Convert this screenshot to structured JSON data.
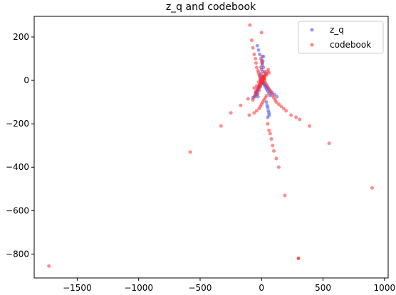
{
  "chart_data": {
    "type": "scatter",
    "title": "z_q and codebook",
    "xlabel": "",
    "ylabel": "",
    "xlim": [
      -1850,
      1030
    ],
    "ylim": [
      -910,
      295
    ],
    "xticks": [
      -1500,
      -1000,
      -500,
      0,
      500,
      1000
    ],
    "yticks": [
      -800,
      -600,
      -400,
      -200,
      0,
      200
    ],
    "grid": false,
    "legend_position": "top-right",
    "series": [
      {
        "name": "z_q",
        "color": "#4050ee",
        "x": [
          -70,
          -60,
          -50,
          -40,
          -30,
          -20,
          -10,
          0,
          10,
          20,
          30,
          40,
          50,
          60,
          70,
          -35,
          -25,
          -15,
          -5,
          5,
          15,
          25,
          -8,
          4,
          12,
          -2,
          6,
          -4,
          2,
          8,
          22,
          38,
          52,
          68,
          85,
          105,
          125,
          40,
          45,
          50,
          55,
          60,
          62,
          50,
          -20,
          -28,
          -35,
          -45,
          -40,
          -30,
          -5,
          0,
          5,
          10,
          15,
          0,
          -5,
          5,
          10,
          -10
        ],
        "y": [
          -80,
          -75,
          -65,
          -55,
          -45,
          -35,
          -25,
          -15,
          -10,
          -20,
          -30,
          -40,
          -50,
          -60,
          -70,
          160,
          140,
          120,
          100,
          80,
          60,
          40,
          20,
          10,
          5,
          -5,
          -8,
          0,
          2,
          -3,
          -15,
          -25,
          -35,
          -45,
          -55,
          -65,
          -75,
          -100,
          -115,
          -125,
          -140,
          -150,
          -160,
          -170,
          -25,
          -35,
          -45,
          -55,
          -65,
          -75,
          30,
          50,
          70,
          90,
          110,
          -5,
          -10,
          8,
          15,
          3
        ]
      },
      {
        "name": "codebook",
        "color": "#ff3030",
        "x": [
          -1730,
          -580,
          -330,
          -250,
          -170,
          -110,
          -95,
          -80,
          -70,
          -60,
          -50,
          -45,
          -40,
          -30,
          -25,
          -20,
          -15,
          -10,
          -5,
          0,
          5,
          10,
          15,
          20,
          25,
          30,
          40,
          50,
          60,
          70,
          80,
          90,
          100,
          110,
          120,
          140,
          160,
          180,
          200,
          240,
          280,
          300,
          310,
          390,
          550,
          900,
          -100,
          -60,
          -40,
          -20,
          -10,
          0,
          10,
          20,
          30,
          40,
          50,
          60,
          70,
          80,
          90,
          100,
          120,
          140,
          190,
          300,
          -70,
          -55,
          -50,
          -45,
          -35,
          -25,
          -15,
          -5,
          5,
          15,
          25,
          35,
          45,
          55,
          -30,
          -20,
          -10,
          0,
          10,
          20,
          30,
          -5,
          0,
          5,
          2,
          -2,
          8,
          -8,
          15,
          25,
          -15,
          -25,
          40,
          60,
          -60,
          -40
        ],
        "y": [
          -855,
          -330,
          -210,
          -150,
          -115,
          -85,
          255,
          185,
          150,
          120,
          100,
          80,
          60,
          45,
          35,
          25,
          15,
          5,
          -5,
          220,
          80,
          40,
          20,
          10,
          0,
          -10,
          -20,
          -30,
          -40,
          -50,
          -60,
          -70,
          -80,
          -90,
          -100,
          -110,
          -120,
          -130,
          -140,
          -160,
          -170,
          -820,
          -180,
          -210,
          -290,
          -495,
          -160,
          -150,
          -140,
          -130,
          -120,
          -110,
          -100,
          -90,
          -80,
          -70,
          -200,
          -230,
          -245,
          -270,
          -300,
          -325,
          -360,
          -400,
          -530,
          -820,
          -90,
          -75,
          -60,
          -50,
          -40,
          -30,
          -20,
          -10,
          0,
          10,
          20,
          30,
          40,
          50,
          -60,
          -45,
          -30,
          -15,
          0,
          15,
          30,
          60,
          90,
          110,
          5,
          -5,
          12,
          -12,
          18,
          8,
          -18,
          -8,
          25,
          35,
          -35,
          -25
        ]
      }
    ]
  }
}
